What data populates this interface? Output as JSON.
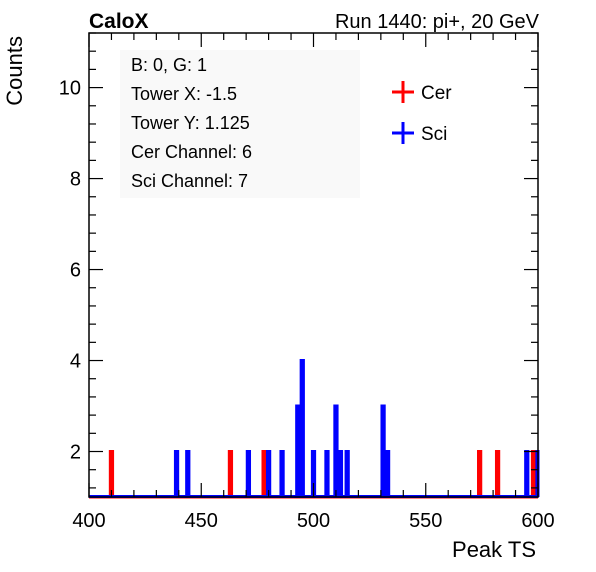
{
  "header": {
    "left_title": "CaloX",
    "right_title": "Run 1440: pi+, 20 GeV"
  },
  "info_box": {
    "lines": [
      "B: 0, G: 1",
      "Tower X: -1.5",
      "Tower Y: 1.125",
      "Cer Channel: 6",
      "Sci Channel: 7"
    ]
  },
  "legend": {
    "placement": "top-right",
    "entries": [
      {
        "label": "Cer",
        "color": "#ff0000"
      },
      {
        "label": "Sci",
        "color": "#0000ff"
      }
    ]
  },
  "chart_data": {
    "type": "line",
    "drawstyle": "histogram-steps",
    "xlabel": "Peak TS",
    "ylabel": "Counts",
    "xlim": [
      400,
      600
    ],
    "ylim": [
      1,
      11.2
    ],
    "x_ticks": [
      400,
      450,
      500,
      550,
      600
    ],
    "y_ticks": [
      2,
      4,
      6,
      8,
      10
    ],
    "bin_width": 1,
    "baseline": 1,
    "grid": false,
    "series": [
      {
        "name": "Cer",
        "color": "#ff0000",
        "bins": [
          {
            "x": 410,
            "y": 2
          },
          {
            "x": 463,
            "y": 2
          },
          {
            "x": 478,
            "y": 2
          },
          {
            "x": 574,
            "y": 2
          },
          {
            "x": 582,
            "y": 2
          },
          {
            "x": 598,
            "y": 2
          }
        ]
      },
      {
        "name": "Sci",
        "color": "#0000ff",
        "bins": [
          {
            "x": 439,
            "y": 2
          },
          {
            "x": 444,
            "y": 2
          },
          {
            "x": 471,
            "y": 2
          },
          {
            "x": 480,
            "y": 2
          },
          {
            "x": 486,
            "y": 2
          },
          {
            "x": 493,
            "y": 3
          },
          {
            "x": 495,
            "y": 4
          },
          {
            "x": 500,
            "y": 2
          },
          {
            "x": 506,
            "y": 2
          },
          {
            "x": 510,
            "y": 3
          },
          {
            "x": 512,
            "y": 2
          },
          {
            "x": 515,
            "y": 2
          },
          {
            "x": 531,
            "y": 3
          },
          {
            "x": 533,
            "y": 2
          },
          {
            "x": 595,
            "y": 2
          },
          {
            "x": 600,
            "y": 2
          }
        ]
      }
    ]
  }
}
